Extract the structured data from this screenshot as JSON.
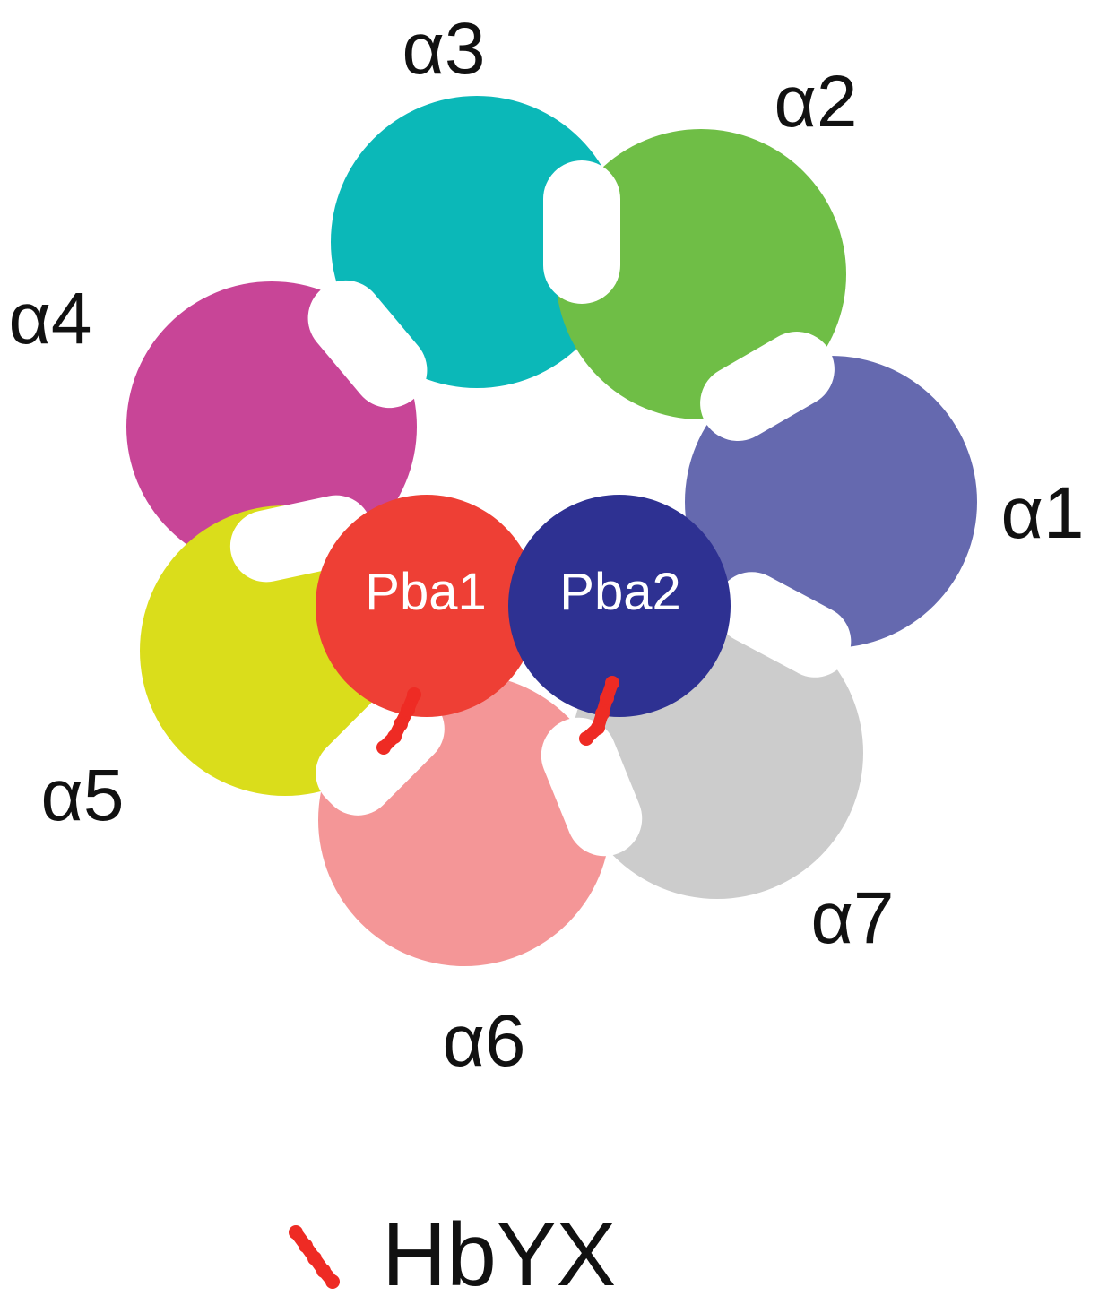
{
  "subunits": [
    {
      "id": "a3",
      "label": "α3",
      "color": "#0bb8b8"
    },
    {
      "id": "a2",
      "label": "α2",
      "color": "#6fbe46"
    },
    {
      "id": "a4",
      "label": "α4",
      "color": "#c84597"
    },
    {
      "id": "a1",
      "label": "α1",
      "color": "#6569af"
    },
    {
      "id": "a7",
      "label": "α7",
      "color": "#cccccc"
    },
    {
      "id": "a5",
      "label": "α5",
      "color": "#dadd1b"
    },
    {
      "id": "a6",
      "label": "α6",
      "color": "#f49697"
    }
  ],
  "chaperones": [
    {
      "id": "pba1",
      "label": "Pba1",
      "color": "#ee3f35"
    },
    {
      "id": "pba2",
      "label": "Pba2",
      "color": "#2e3192"
    }
  ],
  "motif_color": "#ee2b24",
  "legend": {
    "label": "HbYX"
  }
}
